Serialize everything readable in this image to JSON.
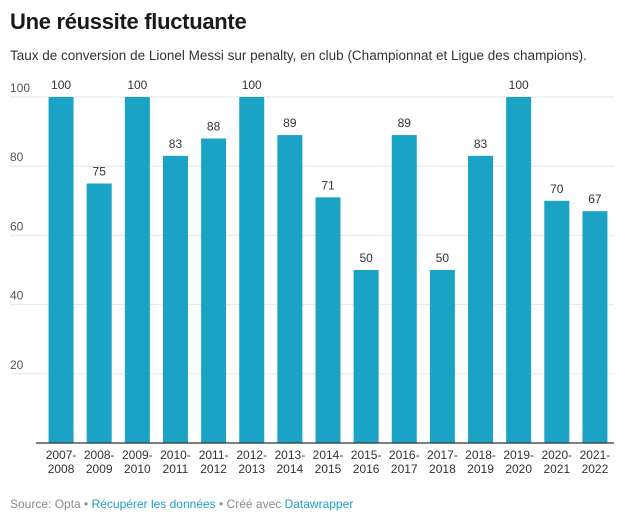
{
  "header": {
    "title": "Une réussite fluctuante",
    "subtitle": "Taux de conversion de Lionel Messi sur penalty, en club (Championnat et Ligue des champions)."
  },
  "footer": {
    "source": "Source: Opta",
    "sep1": " • ",
    "download_link": "Récupérer les données",
    "sep2": " • ",
    "created_with": "Créé avec ",
    "tool_link": "Datawrapper"
  },
  "colors": {
    "bar": "#1ba3c6",
    "grid": "#e6e6e6",
    "axis": "#333333",
    "tick_label": "#555555",
    "value_label": "#333333"
  },
  "chart_data": {
    "type": "bar",
    "title": "Une réussite fluctuante",
    "categories": [
      [
        "2007-",
        "2008"
      ],
      [
        "2008-",
        "2009"
      ],
      [
        "2009-",
        "2010"
      ],
      [
        "2010-",
        "2011"
      ],
      [
        "2011-",
        "2012"
      ],
      [
        "2012-",
        "2013"
      ],
      [
        "2013-",
        "2014"
      ],
      [
        "2014-",
        "2015"
      ],
      [
        "2015-",
        "2016"
      ],
      [
        "2016-",
        "2017"
      ],
      [
        "2017-",
        "2018"
      ],
      [
        "2018-",
        "2019"
      ],
      [
        "2019-",
        "2020"
      ],
      [
        "2020-",
        "2021"
      ],
      [
        "2021-",
        "2022"
      ]
    ],
    "values": [
      100,
      75,
      100,
      83,
      88,
      100,
      89,
      71,
      50,
      89,
      50,
      83,
      100,
      70,
      67
    ],
    "ylim": [
      0,
      100
    ],
    "yticks": [
      20,
      40,
      60,
      80,
      100
    ],
    "grid": true,
    "value_labels": true
  }
}
